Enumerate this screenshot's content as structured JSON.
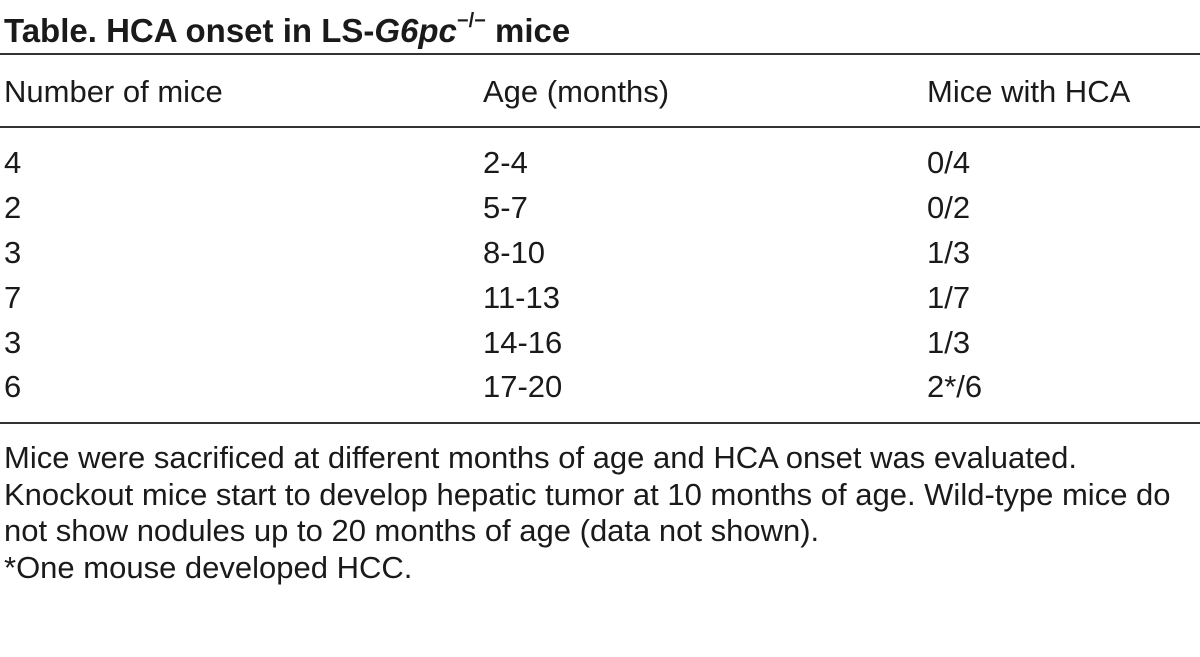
{
  "table": {
    "title_prefix": "Table. HCA onset in LS-",
    "title_gene": "G6pc",
    "title_superscript": "−/−",
    "title_suffix": " mice",
    "columns": [
      "Number of mice",
      "Age (months)",
      "Mice with HCA"
    ],
    "rows": [
      [
        "4",
        "2-4",
        "0/4"
      ],
      [
        "2",
        "5-7",
        "0/2"
      ],
      [
        "3",
        "8-10",
        "1/3"
      ],
      [
        "7",
        "11-13",
        "1/7"
      ],
      [
        "3",
        "14-16",
        "1/3"
      ],
      [
        "6",
        "17-20",
        "2*/6"
      ]
    ]
  },
  "footnotes": {
    "note": "Mice were sacrificed at different months of age and HCA onset was evaluated. Knockout mice start to develop hepatic tumor at 10 months of age. Wild-type mice do not show nodules up to 20 months of age (data not shown).",
    "asterisk": "*One mouse developed HCC."
  }
}
